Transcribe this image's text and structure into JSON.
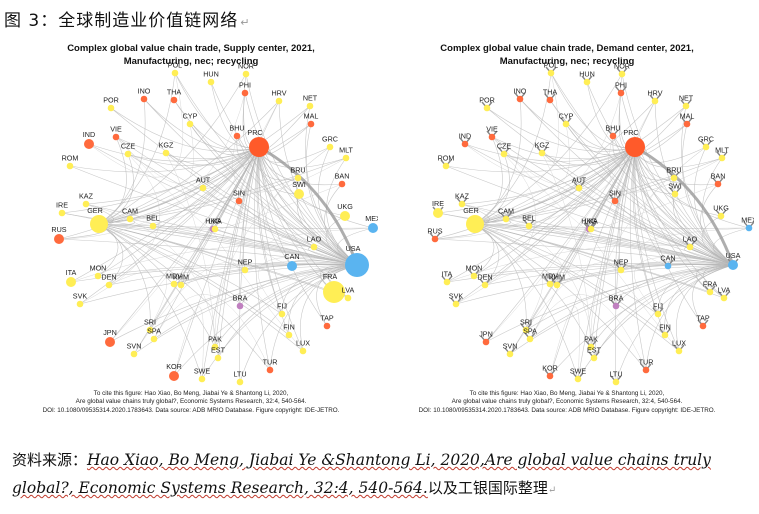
{
  "figure_title": "图 3：全球制造业价值链网络",
  "paragraph_mark": "↵",
  "chart_data": [
    {
      "type": "network",
      "title_line1": "Complex global value chain trade, Supply center, 2021,",
      "title_line2": "Manufacturing, nec; recycling",
      "citation": [
        "To cite this figure: Hao Xiao, Bo Meng, Jiabai Ye & Shantong Li, 2020,",
        "Are global value chains truly global?, Economic Systems Research, 32:4, 540-564.",
        "DOI: 10.1080/09535314.2020.1783643. Data source: ADB MRIO Database. Figure copyright: IDE-JETRO."
      ],
      "hubs": [
        "PRC",
        "USA",
        "GER"
      ],
      "nodes": [
        {
          "label": "POL",
          "color": "#ffee55",
          "size": "s"
        },
        {
          "label": "HUN",
          "color": "#ffee55",
          "size": "s"
        },
        {
          "label": "NOR",
          "color": "#ffee55",
          "size": "s"
        },
        {
          "label": "PHI",
          "color": "#ff6a3d",
          "size": "s"
        },
        {
          "label": "INO",
          "color": "#ff6a3d",
          "size": "s"
        },
        {
          "label": "THA",
          "color": "#ff6a3d",
          "size": "s"
        },
        {
          "label": "HRV",
          "color": "#ffee55",
          "size": "s"
        },
        {
          "label": "POR",
          "color": "#ffee55",
          "size": "s"
        },
        {
          "label": "NET",
          "color": "#ffee55",
          "size": "s"
        },
        {
          "label": "CYP",
          "color": "#ffee55",
          "size": "s"
        },
        {
          "label": "MAL",
          "color": "#ff6a3d",
          "size": "s"
        },
        {
          "label": "IND",
          "color": "#ff6a3d",
          "size": "m"
        },
        {
          "label": "VIE",
          "color": "#ff6a3d",
          "size": "s"
        },
        {
          "label": "BHU",
          "color": "#ff6a3d",
          "size": "s"
        },
        {
          "label": "PRC",
          "color": "#ff5a2a",
          "size": "l"
        },
        {
          "label": "GRC",
          "color": "#ffee55",
          "size": "s"
        },
        {
          "label": "CZE",
          "color": "#ffee55",
          "size": "s"
        },
        {
          "label": "KGZ",
          "color": "#ffee55",
          "size": "s"
        },
        {
          "label": "MLT",
          "color": "#ffee55",
          "size": "s"
        },
        {
          "label": "ROM",
          "color": "#ffee55",
          "size": "s"
        },
        {
          "label": "BRU",
          "color": "#ffee55",
          "size": "s"
        },
        {
          "label": "BAN",
          "color": "#ff6a3d",
          "size": "s"
        },
        {
          "label": "AUT",
          "color": "#ffee55",
          "size": "s"
        },
        {
          "label": "SWI",
          "color": "#ffee55",
          "size": "m"
        },
        {
          "label": "KAZ",
          "color": "#ffee55",
          "size": "s"
        },
        {
          "label": "SIN",
          "color": "#ff6a3d",
          "size": "s"
        },
        {
          "label": "IRE",
          "color": "#ffee55",
          "size": "s"
        },
        {
          "label": "GER",
          "color": "#ffee55",
          "size": "l"
        },
        {
          "label": "CAM",
          "color": "#ffee55",
          "size": "s"
        },
        {
          "label": "UKG",
          "color": "#ffee55",
          "size": "m"
        },
        {
          "label": "MEX",
          "color": "#5ab4f0",
          "size": "m"
        },
        {
          "label": "BEL",
          "color": "#ffee55",
          "size": "s"
        },
        {
          "label": "RUS",
          "color": "#ff6a3d",
          "size": "m"
        },
        {
          "label": "HKG",
          "color": "#c080c0",
          "size": "s"
        },
        {
          "label": "LKA",
          "color": "#ffee55",
          "size": "s"
        },
        {
          "label": "CAN",
          "color": "#5ab4f0",
          "size": "m"
        },
        {
          "label": "LAO",
          "color": "#ffee55",
          "size": "s"
        },
        {
          "label": "USA",
          "color": "#5ab4f0",
          "size": "l"
        },
        {
          "label": "NEP",
          "color": "#ffee55",
          "size": "s"
        },
        {
          "label": "ITA",
          "color": "#ffee55",
          "size": "m"
        },
        {
          "label": "MON",
          "color": "#ffee55",
          "size": "s"
        },
        {
          "label": "MDV",
          "color": "#ffee55",
          "size": "s"
        },
        {
          "label": "DEN",
          "color": "#ffee55",
          "size": "s"
        },
        {
          "label": "KHM",
          "color": "#ffee55",
          "size": "s"
        },
        {
          "label": "FRA",
          "color": "#ffee55",
          "size": "l"
        },
        {
          "label": "SVK",
          "color": "#ffee55",
          "size": "s"
        },
        {
          "label": "LVA",
          "color": "#ffee55",
          "size": "s"
        },
        {
          "label": "BRA",
          "color": "#c080c0",
          "size": "s"
        },
        {
          "label": "FIJ",
          "color": "#ffee55",
          "size": "s"
        },
        {
          "label": "TAP",
          "color": "#ff6a3d",
          "size": "s"
        },
        {
          "label": "SRI",
          "color": "#ffee55",
          "size": "s"
        },
        {
          "label": "SPA",
          "color": "#ffee55",
          "size": "s"
        },
        {
          "label": "FIN",
          "color": "#ffee55",
          "size": "s"
        },
        {
          "label": "JPN",
          "color": "#ff6a3d",
          "size": "m"
        },
        {
          "label": "PAK",
          "color": "#ffee55",
          "size": "s"
        },
        {
          "label": "EST",
          "color": "#ffee55",
          "size": "s"
        },
        {
          "label": "LUX",
          "color": "#ffee55",
          "size": "s"
        },
        {
          "label": "SVN",
          "color": "#ffee55",
          "size": "s"
        },
        {
          "label": "TUR",
          "color": "#ff6a3d",
          "size": "s"
        },
        {
          "label": "KOR",
          "color": "#ff6a3d",
          "size": "m"
        },
        {
          "label": "SWE",
          "color": "#ffee55",
          "size": "s"
        },
        {
          "label": "LTU",
          "color": "#ffee55",
          "size": "s"
        }
      ]
    },
    {
      "type": "network",
      "title_line1": "Complex global value chain trade, Demand center, 2021,",
      "title_line2": "Manufacturing, nec; recycling",
      "citation": [
        "To cite this figure: Hao Xiao, Bo Meng, Jiabai Ye & Shantong Li, 2020,",
        "Are global value chains truly global?, Economic Systems Research, 32:4, 540-564.",
        "DOI: 10.1080/09535314.2020.1783643. Data source: ADB MRIO Database. Figure copyright: IDE-JETRO."
      ],
      "hubs": [
        "PRC",
        "USA",
        "GER"
      ],
      "nodes": [
        {
          "label": "POL",
          "color": "#ffee55",
          "size": "s"
        },
        {
          "label": "HUN",
          "color": "#ffee55",
          "size": "s"
        },
        {
          "label": "NOR",
          "color": "#ffee55",
          "size": "s"
        },
        {
          "label": "PHI",
          "color": "#ff6a3d",
          "size": "s"
        },
        {
          "label": "INO",
          "color": "#ff6a3d",
          "size": "s"
        },
        {
          "label": "THA",
          "color": "#ff6a3d",
          "size": "s"
        },
        {
          "label": "HRV",
          "color": "#ffee55",
          "size": "s"
        },
        {
          "label": "POR",
          "color": "#ffee55",
          "size": "s"
        },
        {
          "label": "NET",
          "color": "#ffee55",
          "size": "s"
        },
        {
          "label": "CYP",
          "color": "#ffee55",
          "size": "s"
        },
        {
          "label": "MAL",
          "color": "#ff6a3d",
          "size": "s"
        },
        {
          "label": "IND",
          "color": "#ff6a3d",
          "size": "s"
        },
        {
          "label": "VIE",
          "color": "#ff6a3d",
          "size": "s"
        },
        {
          "label": "BHU",
          "color": "#ff6a3d",
          "size": "s"
        },
        {
          "label": "PRC",
          "color": "#ff5a2a",
          "size": "l"
        },
        {
          "label": "GRC",
          "color": "#ffee55",
          "size": "s"
        },
        {
          "label": "CZE",
          "color": "#ffee55",
          "size": "s"
        },
        {
          "label": "KGZ",
          "color": "#ffee55",
          "size": "s"
        },
        {
          "label": "MLT",
          "color": "#ffee55",
          "size": "s"
        },
        {
          "label": "ROM",
          "color": "#ffee55",
          "size": "s"
        },
        {
          "label": "BRU",
          "color": "#ffee55",
          "size": "s"
        },
        {
          "label": "BAN",
          "color": "#ff6a3d",
          "size": "s"
        },
        {
          "label": "AUT",
          "color": "#ffee55",
          "size": "s"
        },
        {
          "label": "SWI",
          "color": "#ffee55",
          "size": "s"
        },
        {
          "label": "KAZ",
          "color": "#ffee55",
          "size": "s"
        },
        {
          "label": "SIN",
          "color": "#ff6a3d",
          "size": "s"
        },
        {
          "label": "IRE",
          "color": "#ffee55",
          "size": "m"
        },
        {
          "label": "GER",
          "color": "#ffee55",
          "size": "l"
        },
        {
          "label": "CAM",
          "color": "#ffee55",
          "size": "s"
        },
        {
          "label": "UKG",
          "color": "#ffee55",
          "size": "s"
        },
        {
          "label": "MEX",
          "color": "#5ab4f0",
          "size": "s"
        },
        {
          "label": "BEL",
          "color": "#ffee55",
          "size": "s"
        },
        {
          "label": "RUS",
          "color": "#ff6a3d",
          "size": "s"
        },
        {
          "label": "HKG",
          "color": "#c080c0",
          "size": "s"
        },
        {
          "label": "LKA",
          "color": "#ffee55",
          "size": "s"
        },
        {
          "label": "CAN",
          "color": "#5ab4f0",
          "size": "s"
        },
        {
          "label": "LAO",
          "color": "#ffee55",
          "size": "s"
        },
        {
          "label": "USA",
          "color": "#5ab4f0",
          "size": "m"
        },
        {
          "label": "NEP",
          "color": "#ffee55",
          "size": "s"
        },
        {
          "label": "ITA",
          "color": "#ffee55",
          "size": "s"
        },
        {
          "label": "MON",
          "color": "#ffee55",
          "size": "s"
        },
        {
          "label": "MDV",
          "color": "#ffee55",
          "size": "s"
        },
        {
          "label": "DEN",
          "color": "#ffee55",
          "size": "s"
        },
        {
          "label": "KHM",
          "color": "#ffee55",
          "size": "s"
        },
        {
          "label": "FRA",
          "color": "#ffee55",
          "size": "s"
        },
        {
          "label": "SVK",
          "color": "#ffee55",
          "size": "s"
        },
        {
          "label": "LVA",
          "color": "#ffee55",
          "size": "s"
        },
        {
          "label": "BRA",
          "color": "#c080c0",
          "size": "s"
        },
        {
          "label": "FIJ",
          "color": "#ffee55",
          "size": "s"
        },
        {
          "label": "TAP",
          "color": "#ff6a3d",
          "size": "s"
        },
        {
          "label": "SRI",
          "color": "#ffee55",
          "size": "s"
        },
        {
          "label": "SPA",
          "color": "#ffee55",
          "size": "s"
        },
        {
          "label": "FIN",
          "color": "#ffee55",
          "size": "s"
        },
        {
          "label": "JPN",
          "color": "#ff6a3d",
          "size": "s"
        },
        {
          "label": "PAK",
          "color": "#ffee55",
          "size": "s"
        },
        {
          "label": "EST",
          "color": "#ffee55",
          "size": "s"
        },
        {
          "label": "LUX",
          "color": "#ffee55",
          "size": "s"
        },
        {
          "label": "SVN",
          "color": "#ffee55",
          "size": "s"
        },
        {
          "label": "TUR",
          "color": "#ff6a3d",
          "size": "s"
        },
        {
          "label": "KOR",
          "color": "#ff6a3d",
          "size": "s"
        },
        {
          "label": "SWE",
          "color": "#ffee55",
          "size": "s"
        },
        {
          "label": "LTU",
          "color": "#ffee55",
          "size": "s"
        }
      ]
    }
  ],
  "source": {
    "prefix": "资料来源：",
    "body": "Hao Xiao, Bo Meng, Jiabai Ye &Shantong Li, 2020,Are global value chains truly global?, Economic Systems Research, 32:4, 540-564.",
    "suffix": "以及工银国际整理"
  }
}
